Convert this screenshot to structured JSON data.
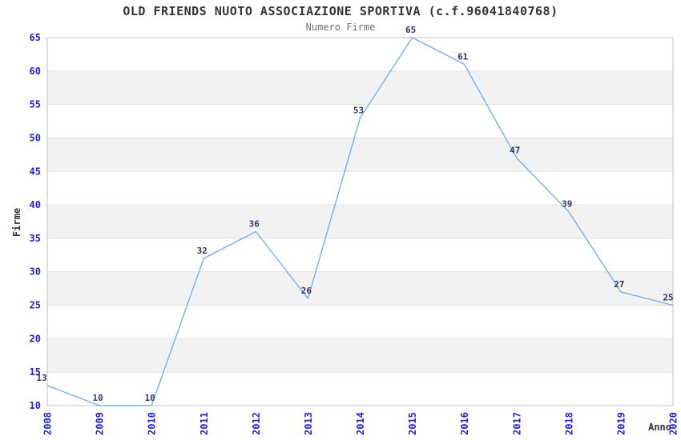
{
  "chart": {
    "title": "OLD FRIENDS NUOTO ASSOCIAZIONE SPORTIVA (c.f.96041840768)",
    "subtitle": "Numero Firme",
    "ylabel": "Firme",
    "xlabel": "Anno"
  },
  "chart_data": {
    "type": "line",
    "title": "OLD FRIENDS NUOTO ASSOCIAZIONE SPORTIVA (c.f.96041840768)",
    "subtitle": "Numero Firme",
    "xlabel": "Anno",
    "ylabel": "Firme",
    "categories": [
      "2008",
      "2009",
      "2010",
      "2011",
      "2012",
      "2013",
      "2014",
      "2015",
      "2016",
      "2017",
      "2018",
      "2019",
      "2020"
    ],
    "values": [
      13,
      10,
      10,
      32,
      36,
      26,
      53,
      65,
      61,
      47,
      39,
      27,
      25
    ],
    "ylim": [
      10,
      65
    ],
    "ytick_step": 5,
    "grid": "horizontal-bands",
    "legend": "none",
    "point_labels": true,
    "colors": {
      "line": "#79ace9",
      "band": "#f2f2f2",
      "grid": "#e0e0e0",
      "border": "#c0c0c0",
      "tick_label": "#2222cc",
      "point_label": "#333366",
      "title": "#333333",
      "subtitle": "#6e6e6e"
    }
  }
}
